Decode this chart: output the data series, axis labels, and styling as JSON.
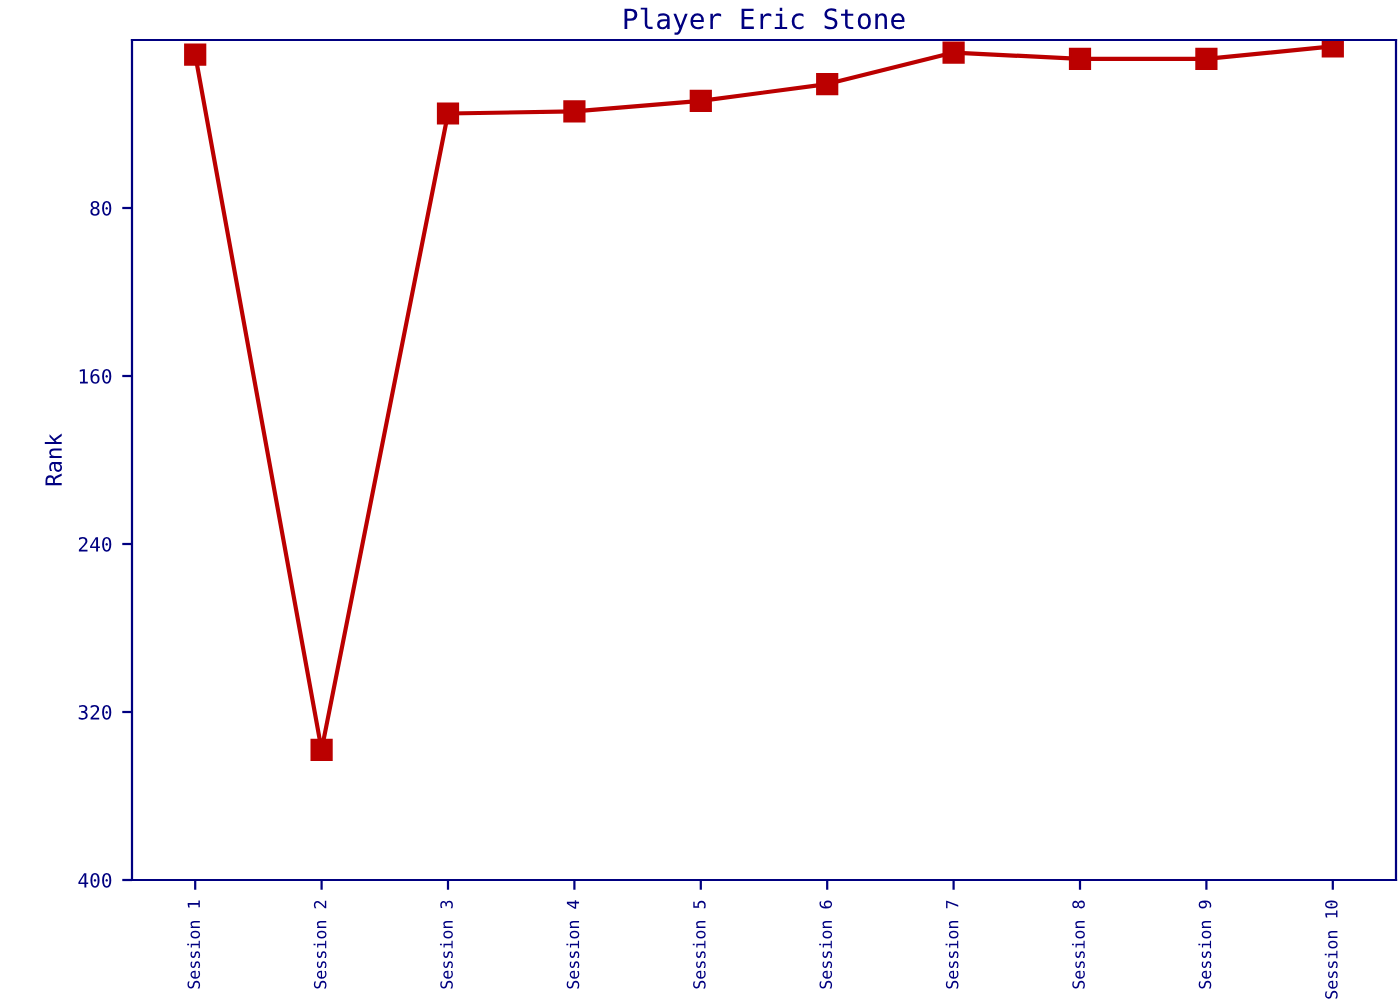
{
  "chart_data": {
    "type": "line",
    "title": "Player Eric Stone",
    "ylabel": "Rank",
    "categories": [
      "Session 1",
      "Session 2",
      "Session 3",
      "Session 4",
      "Session 5",
      "Session 6",
      "Session 7",
      "Session 8",
      "Session 9",
      "Session 10"
    ],
    "series": [
      {
        "color": "#bb0000",
        "values": [
          7,
          338,
          35,
          34,
          29,
          21,
          6,
          9,
          9,
          3
        ]
      }
    ],
    "ylim": [
      400,
      0
    ],
    "yticks": [
      80,
      160,
      240,
      320,
      400
    ],
    "grid": false,
    "marker": "square",
    "line_style": "solid"
  }
}
